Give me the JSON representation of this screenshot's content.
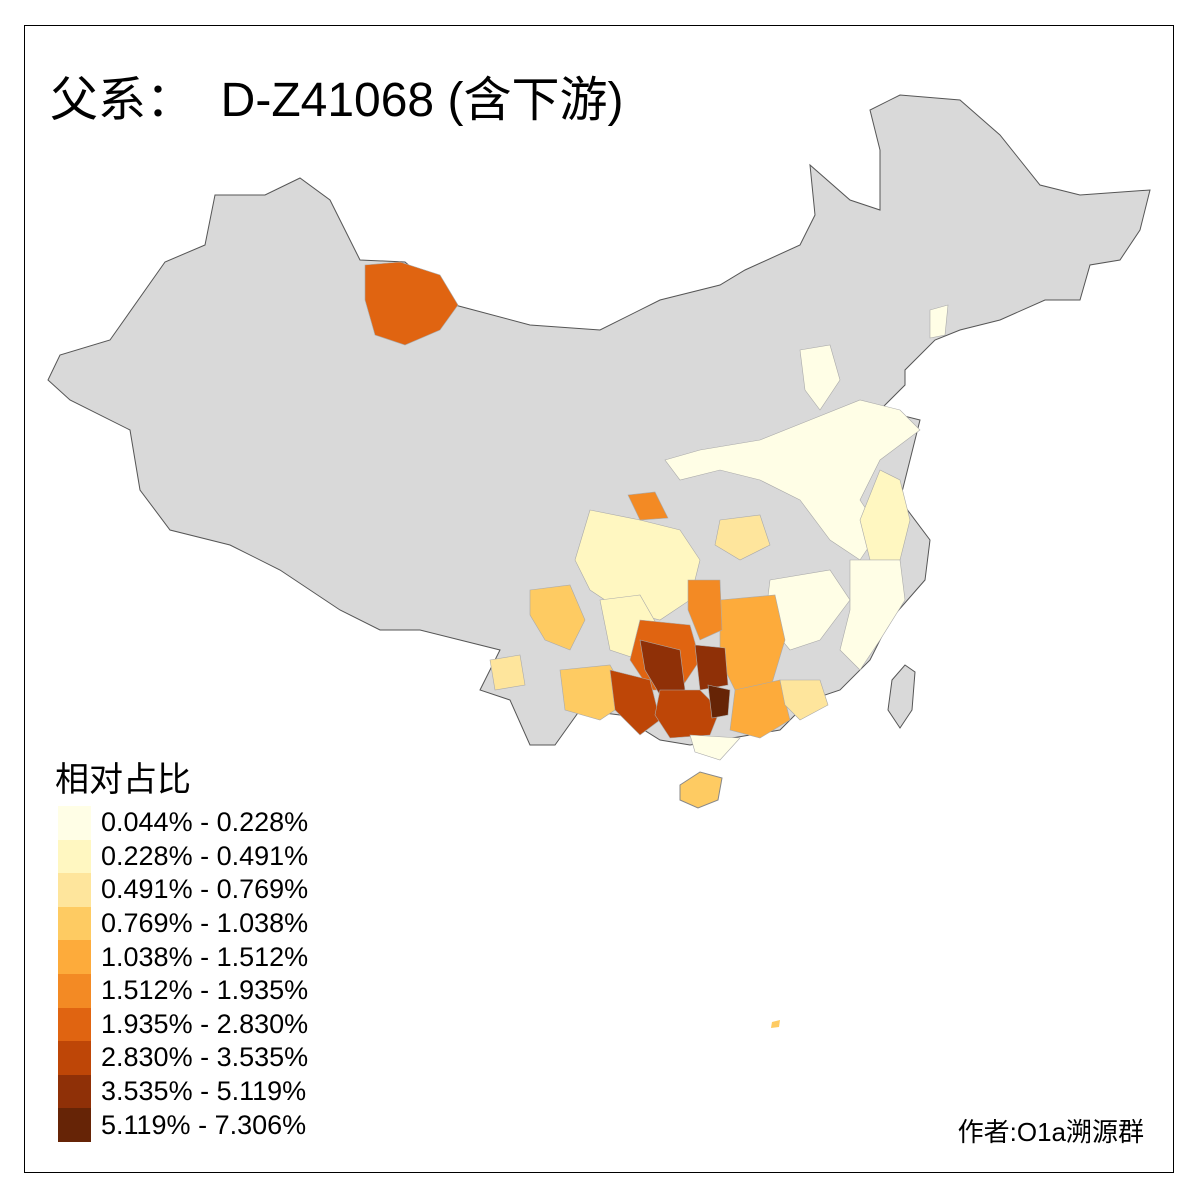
{
  "title": "父系：  D-Z41068 (含下游)",
  "legend": {
    "title": "相对占比",
    "classes": [
      {
        "label": "0.044% - 0.228%",
        "color": "#fffee6"
      },
      {
        "label": "0.228% - 0.491%",
        "color": "#fff7c1"
      },
      {
        "label": "0.491% - 0.769%",
        "color": "#fee59c"
      },
      {
        "label": "0.769% - 1.038%",
        "color": "#fecb62"
      },
      {
        "label": "1.038% - 1.512%",
        "color": "#fdab3b"
      },
      {
        "label": "1.512% - 1.935%",
        "color": "#f38a24"
      },
      {
        "label": "1.935% - 2.830%",
        "color": "#e06411"
      },
      {
        "label": "2.830% - 3.535%",
        "color": "#be4607"
      },
      {
        "label": "3.535% - 5.119%",
        "color": "#8f3007"
      },
      {
        "label": "5.119% - 7.306%",
        "color": "#662406"
      }
    ]
  },
  "no_data_color": "#d9d9d9",
  "author": "作者:O1a溯源群"
}
